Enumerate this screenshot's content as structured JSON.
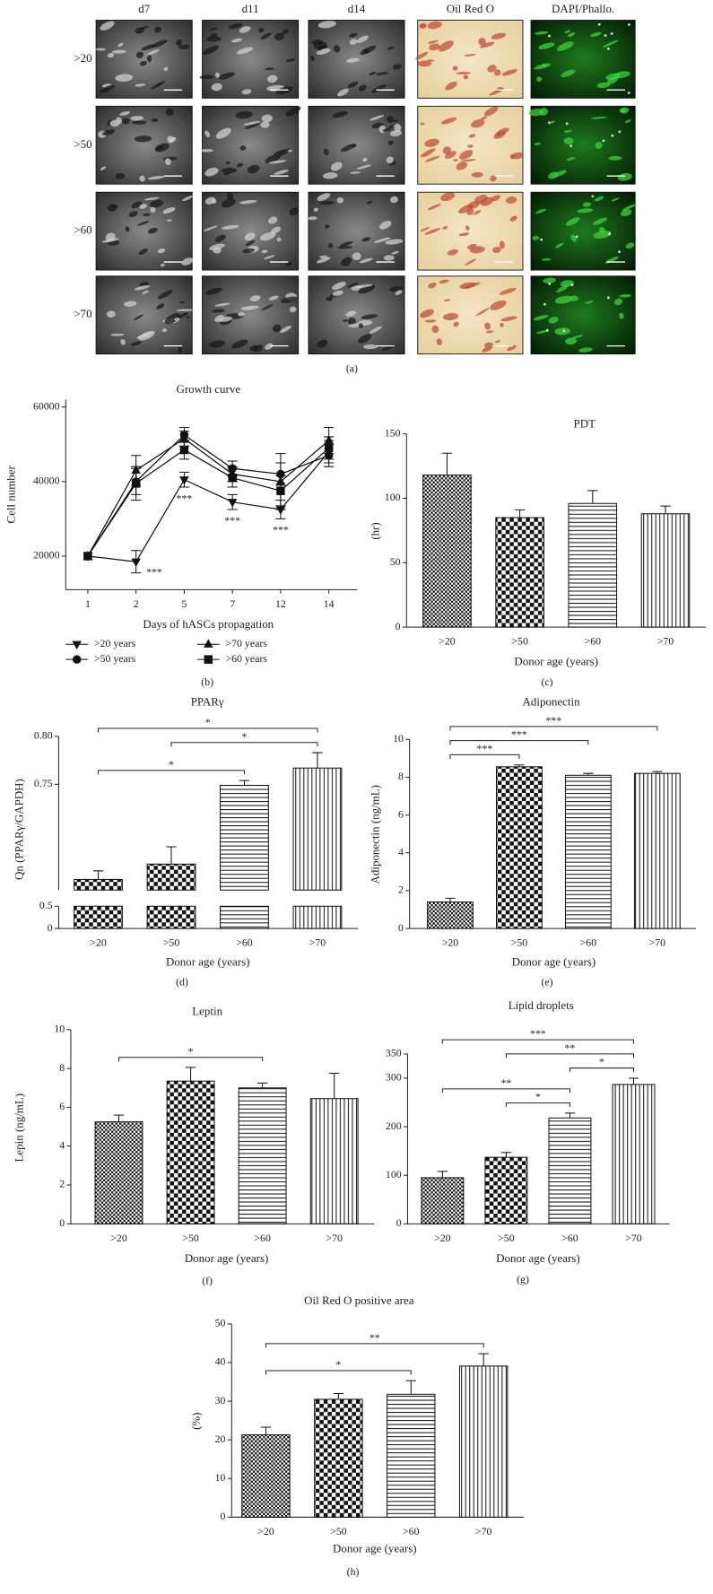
{
  "image_panel": {
    "columns": [
      "d7",
      "d11",
      "d14",
      "Oil Red O",
      "DAPI/Phallo."
    ],
    "rows": [
      ">20",
      ">50",
      ">60",
      ">70"
    ],
    "caption": "(a)"
  },
  "chart_data": [
    {
      "type": "line",
      "title": "Growth curve",
      "xlabel": "Days of hASCs propagation",
      "ylabel": "Cell number",
      "caption": "(b)",
      "categories": [
        "1",
        "2",
        "5",
        "7",
        "12",
        "14"
      ],
      "series": [
        {
          "name": ">20 years",
          "color": "#111111",
          "marker": "v",
          "values": [
            20000,
            18500,
            40500,
            34500,
            32500,
            48000
          ],
          "errors": [
            null,
            3000,
            2000,
            2000,
            2500,
            3000
          ]
        },
        {
          "name": ">50 years",
          "color": "#111111",
          "marker": "o",
          "values": [
            20000,
            40000,
            52500,
            43500,
            42000,
            47000
          ],
          "errors": [
            null,
            3500,
            2000,
            2000,
            3000,
            3000
          ]
        },
        {
          "name": ">70 years",
          "color": "#111111",
          "marker": "^",
          "values": [
            20000,
            43000,
            51500,
            42000,
            40000,
            51000
          ],
          "errors": [
            null,
            4000,
            2000,
            2000,
            7500,
            3500
          ]
        },
        {
          "name": ">60 years",
          "color": "#111111",
          "marker": "s",
          "values": [
            20000,
            39500,
            48500,
            41000,
            37500,
            49000
          ],
          "errors": [
            null,
            4500,
            2500,
            2500,
            4000,
            3000
          ]
        }
      ],
      "annotations": [
        {
          "text": "***",
          "category": "2"
        },
        {
          "text": "***",
          "category": "5"
        },
        {
          "text": "***",
          "category": "7"
        },
        {
          "text": "***",
          "category": "12"
        }
      ],
      "ylim": [
        11000,
        62000
      ],
      "yticks": [
        20000,
        40000,
        60000
      ]
    },
    {
      "type": "bar",
      "title": "PDT",
      "xlabel": "Donor age (years)",
      "ylabel": "(hr)",
      "caption": "(c)",
      "categories": [
        ">20",
        ">50",
        ">60",
        ">70"
      ],
      "values": [
        118,
        85,
        96,
        88
      ],
      "errors": [
        17,
        6,
        10,
        6
      ],
      "patterns": [
        "fine-check",
        "check",
        "horizontal",
        "vertical"
      ],
      "annotations": [],
      "ylim": [
        0,
        150
      ],
      "yticks": [
        0,
        50,
        100,
        150
      ]
    },
    {
      "type": "bar",
      "title": "PPARγ",
      "xlabel": "Donor age (years)",
      "ylabel": "Qn (PPARγ/GAPDH)",
      "caption": "(d)",
      "categories": [
        ">20",
        ">50",
        ">60",
        ">70"
      ],
      "values": [
        0.651,
        0.667,
        0.749,
        0.767
      ],
      "errors": [
        0.009,
        0.018,
        0.005,
        0.016
      ],
      "patterns": [
        "check",
        "check",
        "horizontal",
        "vertical"
      ],
      "annotations": [
        {
          "text": "*",
          "between": [
            ">20",
            ">60"
          ]
        },
        {
          "text": "*",
          "between": [
            ">50",
            ">70"
          ]
        },
        {
          "text": "*",
          "between": [
            ">20",
            ">70"
          ]
        }
      ],
      "y_segments": [
        {
          "ylim": [
            0,
            0.5
          ],
          "yticks": [
            0,
            0.5
          ]
        },
        {
          "ylim": [
            0.64,
            0.8
          ],
          "yticks": [
            0.75,
            {
              "value": 0.8,
              "label": "0.80"
            }
          ]
        }
      ]
    },
    {
      "type": "bar",
      "title": "Adiponectin",
      "xlabel": "Donor age (years)",
      "ylabel": "Adiponectin (ng/mL)",
      "caption": "(e)",
      "categories": [
        ">20",
        ">50",
        ">60",
        ">70"
      ],
      "values": [
        1.4,
        8.55,
        8.1,
        8.2
      ],
      "errors": [
        0.2,
        0.1,
        0.1,
        0.1
      ],
      "patterns": [
        "fine-check",
        "check",
        "horizontal",
        "vertical"
      ],
      "annotations": [
        {
          "text": "***",
          "between": [
            ">20",
            ">50"
          ]
        },
        {
          "text": "***",
          "between": [
            ">20",
            ">60"
          ]
        },
        {
          "text": "***",
          "between": [
            ">20",
            ">70"
          ]
        }
      ],
      "ylim": [
        0,
        10
      ],
      "yticks": [
        0,
        2,
        4,
        6,
        8,
        10
      ]
    },
    {
      "type": "bar",
      "title": "Leptin",
      "xlabel": "Donor age (years)",
      "ylabel": "Lepin (ng/mL)",
      "caption": "(f)",
      "categories": [
        ">20",
        ">50",
        ">60",
        ">70"
      ],
      "values": [
        5.25,
        7.35,
        7.0,
        6.45
      ],
      "errors": [
        0.35,
        0.7,
        0.25,
        1.3
      ],
      "patterns": [
        "fine-check",
        "check",
        "horizontal",
        "vertical"
      ],
      "annotations": [
        {
          "text": "*",
          "between": [
            ">20",
            ">60"
          ]
        }
      ],
      "ylim": [
        0,
        10
      ],
      "yticks": [
        0,
        2,
        4,
        6,
        8,
        10
      ]
    },
    {
      "type": "bar",
      "title": "Lipid droplets",
      "xlabel": "Donor age (years)",
      "caption": "(g)",
      "categories": [
        ">20",
        ">50",
        ">60",
        ">70"
      ],
      "values": [
        95,
        137,
        218,
        287
      ],
      "errors": [
        13,
        10,
        10,
        13
      ],
      "patterns": [
        "fine-check",
        "check",
        "horizontal",
        "vertical"
      ],
      "annotations": [
        {
          "text": "*",
          "between": [
            ">50",
            ">60"
          ]
        },
        {
          "text": "**",
          "between": [
            ">20",
            ">60"
          ]
        },
        {
          "text": "*",
          "between": [
            ">60",
            ">70"
          ]
        },
        {
          "text": "**",
          "between": [
            ">50",
            ">70"
          ]
        },
        {
          "text": "***",
          "between": [
            ">20",
            ">70"
          ]
        }
      ],
      "ylim": [
        0,
        350
      ],
      "yticks": [
        0,
        100,
        200,
        300,
        350
      ]
    },
    {
      "type": "bar",
      "title": "Oil Red O positive area",
      "xlabel": "Donor age (years)",
      "ylabel": "(%)",
      "caption": "(h)",
      "categories": [
        ">20",
        ">50",
        ">60",
        ">70"
      ],
      "values": [
        21.3,
        30.5,
        31.8,
        39.1
      ],
      "errors": [
        2,
        1.5,
        3.5,
        3.2
      ],
      "patterns": [
        "fine-check",
        "check",
        "horizontal",
        "vertical"
      ],
      "annotations": [
        {
          "text": "*",
          "between": [
            ">20",
            ">60"
          ]
        },
        {
          "text": "**",
          "between": [
            ">20",
            ">70"
          ]
        }
      ],
      "ylim": [
        0,
        50
      ],
      "yticks": [
        0,
        10,
        20,
        30,
        40,
        50
      ]
    }
  ]
}
